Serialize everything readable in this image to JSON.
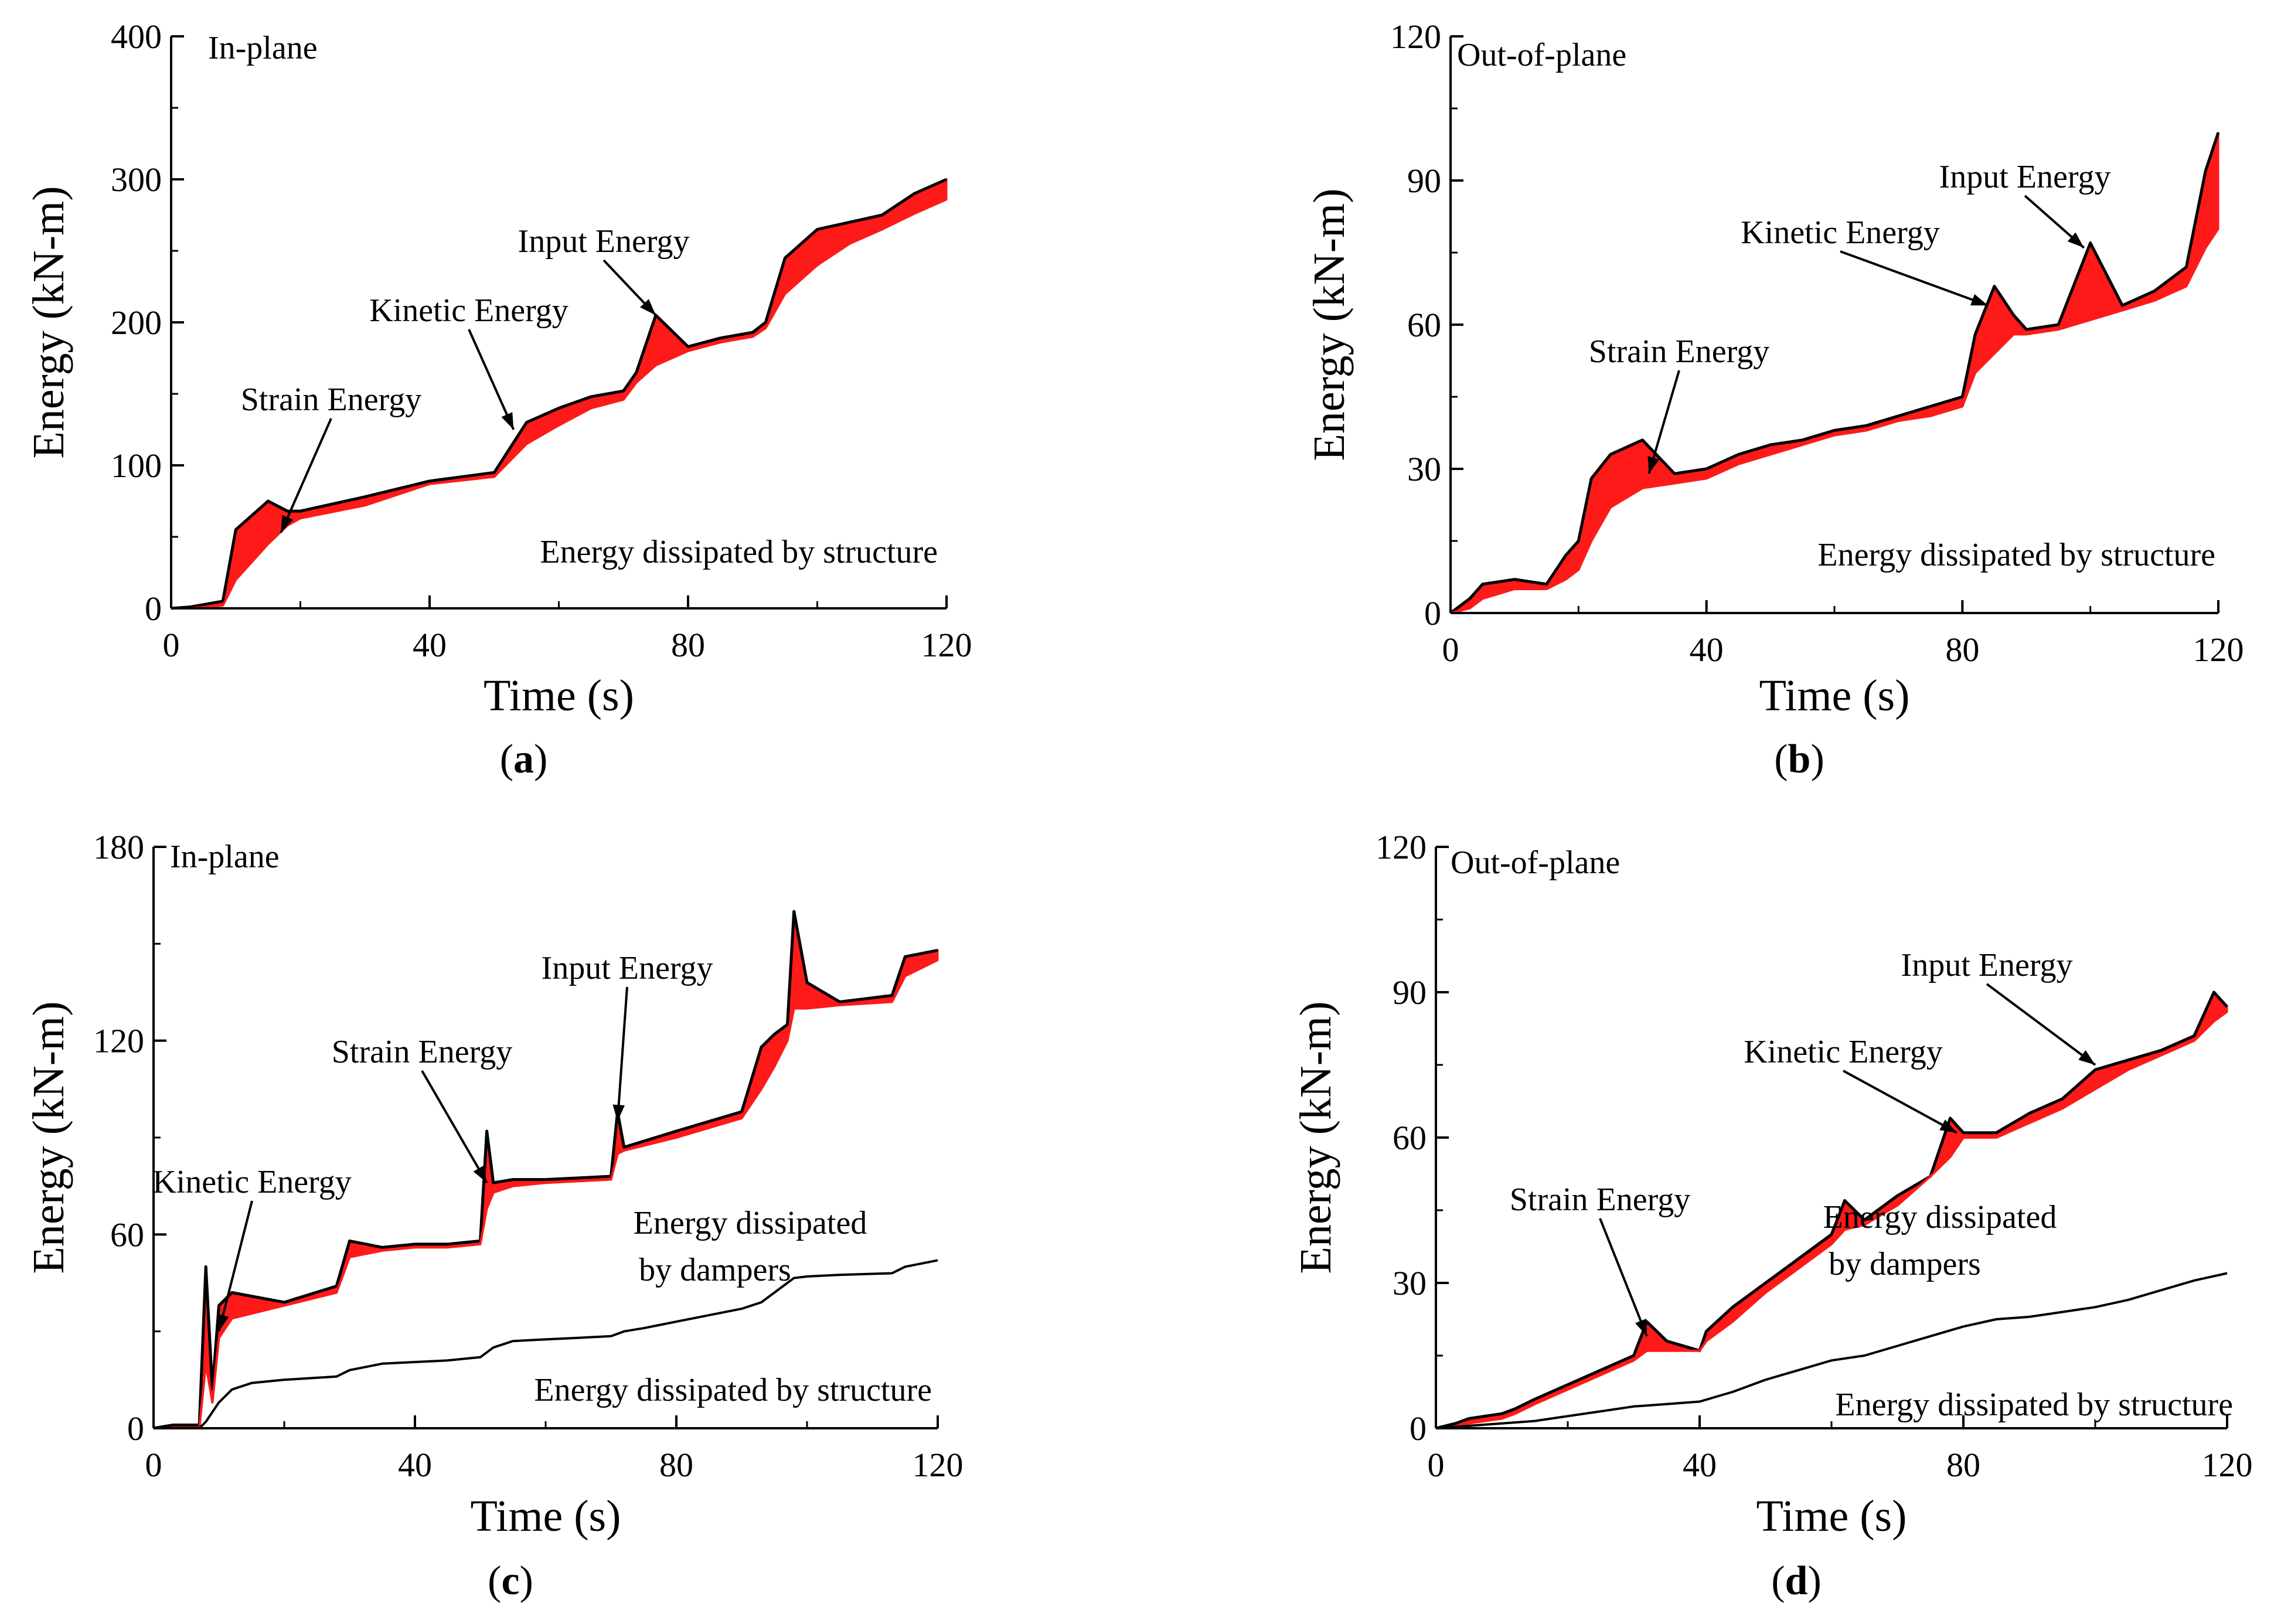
{
  "figure": {
    "colors": {
      "band": "#ff1a1a",
      "line": "#000000"
    }
  },
  "chart_data": [
    {
      "id": "a",
      "type": "line",
      "panel_label": "a",
      "corner_label": "In-plane",
      "xlabel": "Time (s)",
      "ylabel": "Energy (kN-m)",
      "xlim": [
        0,
        120
      ],
      "ylim": [
        0,
        400
      ],
      "xticks": [
        0,
        40,
        80,
        120
      ],
      "yticks": [
        0,
        100,
        200,
        300,
        400
      ],
      "series": [
        {
          "name": "Input Energy",
          "x": [
            0,
            3,
            8,
            10,
            15,
            18,
            20,
            30,
            40,
            50,
            55,
            60,
            65,
            70,
            72,
            75,
            80,
            85,
            90,
            92,
            95,
            100,
            105,
            110,
            115,
            120
          ],
          "y": [
            0,
            1,
            5,
            55,
            75,
            68,
            68,
            78,
            89,
            95,
            130,
            140,
            148,
            152,
            165,
            205,
            183,
            189,
            193,
            200,
            245,
            265,
            270,
            275,
            290,
            300
          ]
        },
        {
          "name": "Energy dissipated by structure",
          "x": [
            0,
            3,
            8,
            10,
            15,
            18,
            20,
            30,
            40,
            50,
            55,
            60,
            65,
            70,
            72,
            75,
            80,
            85,
            90,
            92,
            95,
            100,
            105,
            110,
            115,
            120
          ],
          "y": [
            0,
            0,
            2,
            20,
            45,
            58,
            63,
            72,
            87,
            92,
            115,
            128,
            140,
            146,
            158,
            170,
            180,
            186,
            190,
            196,
            220,
            240,
            255,
            265,
            276,
            286
          ]
        }
      ],
      "annotations": [
        {
          "text": "Input Energy",
          "point": [
            75,
            205
          ]
        },
        {
          "text": "Kinetic Energy",
          "point": [
            53,
            125
          ]
        },
        {
          "text": "Strain Energy",
          "point": [
            17,
            53
          ]
        },
        {
          "text": "Energy dissipated by structure"
        }
      ]
    },
    {
      "id": "b",
      "type": "line",
      "panel_label": "b",
      "corner_label": "Out-of-plane",
      "xlabel": "Time (s)",
      "ylabel": "Energy (kN-m)",
      "xlim": [
        0,
        120
      ],
      "ylim": [
        0,
        120
      ],
      "xticks": [
        0,
        40,
        80,
        120
      ],
      "yticks": [
        0,
        30,
        60,
        90,
        120
      ],
      "series": [
        {
          "name": "Input Energy",
          "x": [
            0,
            3,
            5,
            10,
            15,
            18,
            20,
            22,
            25,
            30,
            35,
            40,
            45,
            50,
            55,
            60,
            65,
            70,
            75,
            80,
            82,
            85,
            88,
            90,
            95,
            100,
            105,
            110,
            115,
            118,
            120
          ],
          "y": [
            0,
            3,
            6,
            7,
            6,
            12,
            15,
            28,
            33,
            36,
            29,
            30,
            33,
            35,
            36,
            38,
            39,
            41,
            43,
            45,
            58,
            68,
            62,
            59,
            60,
            77,
            64,
            67,
            72,
            92,
            100
          ]
        },
        {
          "name": "Energy dissipated by structure",
          "x": [
            0,
            3,
            5,
            10,
            15,
            18,
            20,
            22,
            25,
            30,
            35,
            40,
            45,
            50,
            55,
            60,
            65,
            70,
            75,
            80,
            82,
            85,
            88,
            90,
            95,
            100,
            105,
            110,
            115,
            118,
            120
          ],
          "y": [
            0,
            1,
            3,
            5,
            5,
            7,
            9,
            15,
            22,
            26,
            27,
            28,
            31,
            33,
            35,
            37,
            38,
            40,
            41,
            43,
            50,
            54,
            58,
            58,
            59,
            61,
            63,
            65,
            68,
            76,
            80
          ]
        }
      ],
      "annotations": [
        {
          "text": "Input Energy",
          "point": [
            99,
            76
          ]
        },
        {
          "text": "Kinetic Energy",
          "point": [
            84,
            64
          ]
        },
        {
          "text": "Strain Energy",
          "point": [
            31,
            29
          ]
        },
        {
          "text": "Energy dissipated by structure"
        }
      ]
    },
    {
      "id": "c",
      "type": "line",
      "panel_label": "c",
      "corner_label": "In-plane",
      "xlabel": "Time (s)",
      "ylabel": "Energy (kN-m)",
      "xlim": [
        0,
        120
      ],
      "ylim": [
        0,
        180
      ],
      "xticks": [
        0,
        40,
        80,
        120
      ],
      "yticks": [
        0,
        60,
        120,
        180
      ],
      "series": [
        {
          "name": "Input Energy",
          "x": [
            0,
            3,
            7,
            8,
            9,
            10,
            12,
            20,
            28,
            30,
            35,
            40,
            45,
            50,
            51,
            52,
            55,
            60,
            70,
            71,
            72,
            80,
            90,
            93,
            95,
            97,
            98,
            100,
            105,
            113,
            115,
            120
          ],
          "y": [
            0,
            1,
            1,
            50,
            12,
            38,
            42,
            39,
            44,
            58,
            56,
            57,
            57,
            58,
            92,
            76,
            77,
            77,
            78,
            98,
            87,
            92,
            98,
            118,
            122,
            125,
            160,
            138,
            132,
            134,
            146,
            148
          ]
        },
        {
          "name": "Energy dissipated by structure",
          "x": [
            0,
            3,
            7,
            8,
            9,
            10,
            12,
            20,
            28,
            30,
            35,
            40,
            45,
            50,
            51,
            52,
            55,
            60,
            70,
            71,
            72,
            80,
            90,
            93,
            95,
            97,
            98,
            100,
            105,
            113,
            115,
            120
          ],
          "y": [
            0,
            0,
            0,
            20,
            8,
            28,
            34,
            38,
            42,
            53,
            55,
            56,
            56,
            57,
            68,
            73,
            75,
            76,
            77,
            85,
            86,
            90,
            96,
            105,
            112,
            120,
            130,
            130,
            131,
            132,
            140,
            145
          ]
        },
        {
          "name": "Energy dissipated by dampers",
          "x": [
            0,
            7,
            8,
            10,
            12,
            15,
            20,
            28,
            30,
            35,
            40,
            45,
            50,
            52,
            55,
            60,
            65,
            70,
            72,
            75,
            80,
            85,
            90,
            93,
            95,
            97,
            98,
            100,
            105,
            113,
            115,
            120
          ],
          "y": [
            0,
            0,
            2,
            8,
            12,
            14,
            15,
            16,
            18,
            20,
            20.5,
            21,
            22,
            25,
            27,
            27.5,
            28,
            28.5,
            30,
            31,
            33,
            35,
            37,
            39,
            42,
            45,
            46.5,
            47,
            47.5,
            48,
            50,
            52
          ]
        }
      ],
      "annotations": [
        {
          "text": "Input Energy",
          "point": [
            71,
            95
          ]
        },
        {
          "text": "Strain Energy",
          "point": [
            51,
            76
          ]
        },
        {
          "text": "Kinetic Energy",
          "point": [
            10,
            30
          ]
        },
        {
          "text": "Energy dissipated",
          "line2": "by dampers"
        },
        {
          "text": "Energy dissipated by structure"
        }
      ]
    },
    {
      "id": "d",
      "type": "line",
      "panel_label": "d",
      "corner_label": "Out-of-plane",
      "xlabel": "Time (s)",
      "ylabel": "Energy (kN-m)",
      "xlim": [
        0,
        120
      ],
      "ylim": [
        0,
        120
      ],
      "xticks": [
        0,
        40,
        80,
        120
      ],
      "yticks": [
        0,
        30,
        60,
        90,
        120
      ],
      "series": [
        {
          "name": "Input Energy",
          "x": [
            0,
            3,
            5,
            10,
            12,
            15,
            20,
            25,
            30,
            32,
            35,
            40,
            41,
            45,
            50,
            55,
            60,
            62,
            65,
            70,
            75,
            78,
            80,
            85,
            90,
            95,
            100,
            105,
            110,
            115,
            118,
            120
          ],
          "y": [
            0,
            1,
            2,
            3,
            4,
            6,
            9,
            12,
            15,
            22,
            18,
            16,
            20,
            25,
            30,
            35,
            40,
            47,
            43,
            48,
            52,
            64,
            61,
            61,
            65,
            68,
            74,
            76,
            78,
            81,
            90,
            87
          ]
        },
        {
          "name": "Energy dissipated by structure",
          "x": [
            0,
            3,
            5,
            10,
            12,
            15,
            20,
            25,
            30,
            32,
            35,
            40,
            41,
            45,
            50,
            55,
            60,
            62,
            65,
            70,
            75,
            78,
            80,
            85,
            90,
            95,
            100,
            105,
            110,
            115,
            118,
            120
          ],
          "y": [
            0,
            0,
            1,
            2,
            3,
            5,
            8,
            11,
            14,
            16,
            16,
            16,
            18,
            22,
            28,
            33,
            38,
            41,
            42,
            46,
            52,
            56,
            60,
            60,
            63,
            66,
            70,
            74,
            77,
            80,
            84,
            86
          ]
        },
        {
          "name": "Energy dissipated by dampers",
          "x": [
            0,
            5,
            10,
            15,
            20,
            25,
            30,
            35,
            40,
            45,
            50,
            55,
            60,
            65,
            70,
            75,
            80,
            85,
            90,
            95,
            100,
            105,
            110,
            115,
            120
          ],
          "y": [
            0,
            0.5,
            1,
            1.5,
            2.5,
            3.5,
            4.5,
            5,
            5.5,
            7.5,
            10,
            12,
            14,
            15,
            17,
            19,
            21,
            22.5,
            23,
            24,
            25,
            26.5,
            28.5,
            30.5,
            32
          ]
        }
      ],
      "annotations": [
        {
          "text": "Input Energy",
          "point": [
            100,
            75
          ]
        },
        {
          "text": "Kinetic Energy",
          "point": [
            79,
            61
          ]
        },
        {
          "text": "Strain Energy",
          "point": [
            32,
            19
          ]
        },
        {
          "text": "Energy dissipated",
          "line2": "by dampers"
        },
        {
          "text": "Energy dissipated by structure"
        }
      ]
    }
  ]
}
